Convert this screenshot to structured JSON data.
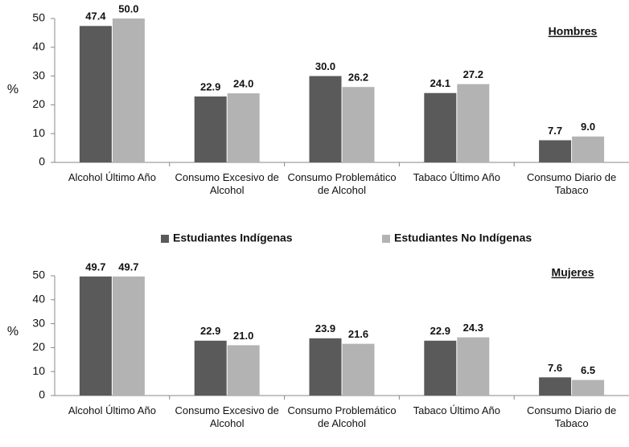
{
  "chart_data": [
    {
      "type": "bar",
      "title": "Hombres",
      "y_label": "%",
      "categories": [
        "Alcohol Último Año",
        "Consumo Excesivo de Alcohol",
        "Consumo Problemático de Alcohol",
        "Tabaco Último Año",
        "Consumo Diario de Tabaco"
      ],
      "series": [
        {
          "name": "Estudiantes Indígenas",
          "color": "#5a5a5a",
          "values": [
            47.4,
            22.9,
            30.0,
            24.1,
            7.7
          ],
          "value_labels": [
            "47.4",
            "22.9",
            "30.0",
            "24.1",
            "7.7"
          ]
        },
        {
          "name": "Estudiantes No Indígenas",
          "color": "#b3b3b3",
          "values": [
            50.0,
            24.0,
            26.2,
            27.2,
            9.0
          ],
          "value_labels": [
            "50.0",
            "24.0",
            "26.2",
            "27.2",
            "9.0"
          ]
        }
      ],
      "ylim": [
        0,
        50
      ],
      "yticks": [
        0,
        10,
        20,
        30,
        40,
        50
      ],
      "grid": false
    },
    {
      "type": "bar",
      "title": "Mujeres",
      "y_label": "%",
      "categories": [
        "Alcohol Último Año",
        "Consumo Excesivo de Alcohol",
        "Consumo Problemático de Alcohol",
        "Tabaco Último Año",
        "Consumo Diario de Tabaco"
      ],
      "series": [
        {
          "color": "#5a5a5a",
          "values": [
            49.7,
            22.9,
            23.9,
            22.9,
            7.6
          ],
          "value_labels": [
            "49.7",
            "22.9",
            "23.9",
            "22.9",
            "7.6"
          ]
        },
        {
          "color": "#b3b3b3",
          "values": [
            49.7,
            21.0,
            21.6,
            24.3,
            6.5
          ],
          "value_labels": [
            "49.7",
            "21.0",
            "21.6",
            "24.3",
            "6.5"
          ]
        }
      ],
      "ylim": [
        0,
        50
      ],
      "yticks": [
        0,
        10,
        20,
        30,
        40,
        50
      ],
      "grid": false
    }
  ]
}
